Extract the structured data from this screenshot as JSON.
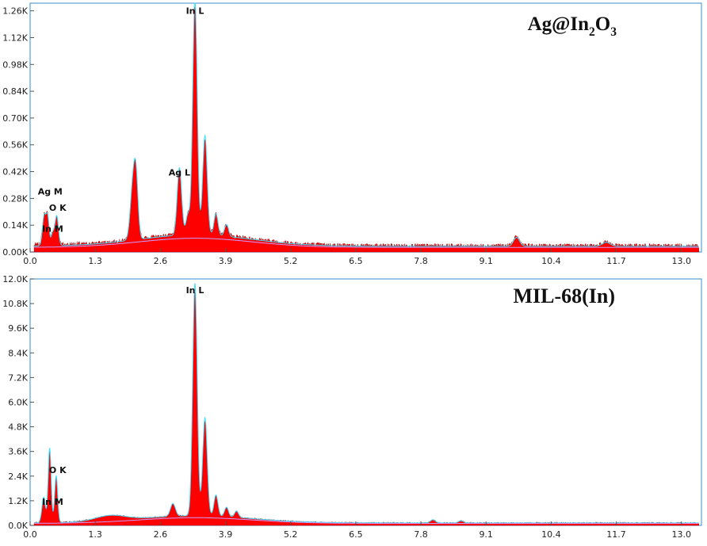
{
  "chart_data": [
    {
      "type": "area",
      "title": "Ag@In₂O₃",
      "title_parts": {
        "base": "Ag@In",
        "sub1": "2",
        "mid": "O",
        "sub2": "3"
      },
      "xlim": [
        0,
        13.4
      ],
      "ylim": [
        0,
        1.3
      ],
      "x_ticks": [
        "0.0",
        "1.3",
        "2.6",
        "3.9",
        "5.2",
        "6.5",
        "7.8",
        "9.1",
        "10.4",
        "11.7",
        "13.0"
      ],
      "y_ticks": [
        "0.00K",
        "0.14K",
        "0.28K",
        "0.42K",
        "0.56K",
        "0.70K",
        "0.84K",
        "0.98K",
        "1.12K",
        "1.26K"
      ],
      "y_tick_values": [
        0,
        0.14,
        0.28,
        0.42,
        0.56,
        0.7,
        0.84,
        0.98,
        1.12,
        1.26
      ],
      "fill_color": "#ff0000",
      "fit_color": "#40e0ff",
      "background_color": "#c8a0ff",
      "baseline": 0.03,
      "background_peak": 0.06,
      "noise": 0.022,
      "peaks": [
        {
          "x": 0.28,
          "h": 0.15,
          "w": 0.035
        },
        {
          "x": 0.35,
          "h": 0.14,
          "w": 0.03
        },
        {
          "x": 0.53,
          "h": 0.15,
          "w": 0.035
        },
        {
          "x": 0.45,
          "h": 0.06,
          "w": 0.03
        },
        {
          "x": 2.06,
          "h": 0.3,
          "w": 0.055
        },
        {
          "x": 2.12,
          "h": 0.2,
          "w": 0.04
        },
        {
          "x": 2.98,
          "h": 0.34,
          "w": 0.045
        },
        {
          "x": 3.15,
          "h": 0.1,
          "w": 0.04
        },
        {
          "x": 3.29,
          "h": 1.19,
          "w": 0.045
        },
        {
          "x": 3.49,
          "h": 0.5,
          "w": 0.045
        },
        {
          "x": 3.71,
          "h": 0.11,
          "w": 0.04
        },
        {
          "x": 3.92,
          "h": 0.06,
          "w": 0.04
        },
        {
          "x": 9.71,
          "h": 0.045,
          "w": 0.06
        },
        {
          "x": 11.5,
          "h": 0.02,
          "w": 0.08
        }
      ],
      "annotations": [
        {
          "text": "In L",
          "x": 3.29,
          "y": 1.245
        },
        {
          "text": "Ag L",
          "x": 2.98,
          "y": 0.4
        },
        {
          "text": "Ag M",
          "x": 0.4,
          "y": 0.3
        },
        {
          "text": "O  K",
          "x": 0.55,
          "y": 0.215
        },
        {
          "text": "In M",
          "x": 0.45,
          "y": 0.105
        }
      ]
    },
    {
      "type": "area",
      "title": "MIL-68(In)",
      "xlim": [
        0,
        13.4
      ],
      "ylim": [
        0,
        12.0
      ],
      "x_ticks": [
        "0.0",
        "1.3",
        "2.6",
        "3.9",
        "5.2",
        "6.5",
        "7.8",
        "9.1",
        "10.4",
        "11.7",
        "13.0"
      ],
      "y_ticks": [
        "0.0K",
        "1.2K",
        "2.4K",
        "3.6K",
        "4.8K",
        "6.0K",
        "7.2K",
        "8.4K",
        "9.6K",
        "10.8K",
        "12.0K"
      ],
      "y_tick_values": [
        0,
        1.2,
        2.4,
        3.6,
        4.8,
        6.0,
        7.2,
        8.4,
        9.6,
        10.8,
        12.0
      ],
      "fill_color": "#ff0000",
      "fit_color": "#40e0ff",
      "background_color": "#c8a0ff",
      "baseline": 0.12,
      "background_peak": 0.35,
      "noise": 0.06,
      "peaks": [
        {
          "x": 0.27,
          "h": 1.2,
          "w": 0.035
        },
        {
          "x": 0.39,
          "h": 3.5,
          "w": 0.03
        },
        {
          "x": 0.52,
          "h": 2.2,
          "w": 0.03
        },
        {
          "x": 1.6,
          "h": 0.25,
          "w": 0.3
        },
        {
          "x": 2.85,
          "h": 0.6,
          "w": 0.05
        },
        {
          "x": 3.29,
          "h": 10.9,
          "w": 0.045
        },
        {
          "x": 3.49,
          "h": 4.6,
          "w": 0.045
        },
        {
          "x": 3.71,
          "h": 1.0,
          "w": 0.04
        },
        {
          "x": 3.92,
          "h": 0.45,
          "w": 0.04
        },
        {
          "x": 4.12,
          "h": 0.3,
          "w": 0.04
        },
        {
          "x": 8.04,
          "h": 0.15,
          "w": 0.05
        },
        {
          "x": 8.6,
          "h": 0.1,
          "w": 0.05
        }
      ],
      "annotations": [
        {
          "text": "In L",
          "x": 3.29,
          "y": 11.3
        },
        {
          "text": "O  K",
          "x": 0.55,
          "y": 2.55
        },
        {
          "text": "In M",
          "x": 0.45,
          "y": 1.0
        }
      ]
    }
  ]
}
